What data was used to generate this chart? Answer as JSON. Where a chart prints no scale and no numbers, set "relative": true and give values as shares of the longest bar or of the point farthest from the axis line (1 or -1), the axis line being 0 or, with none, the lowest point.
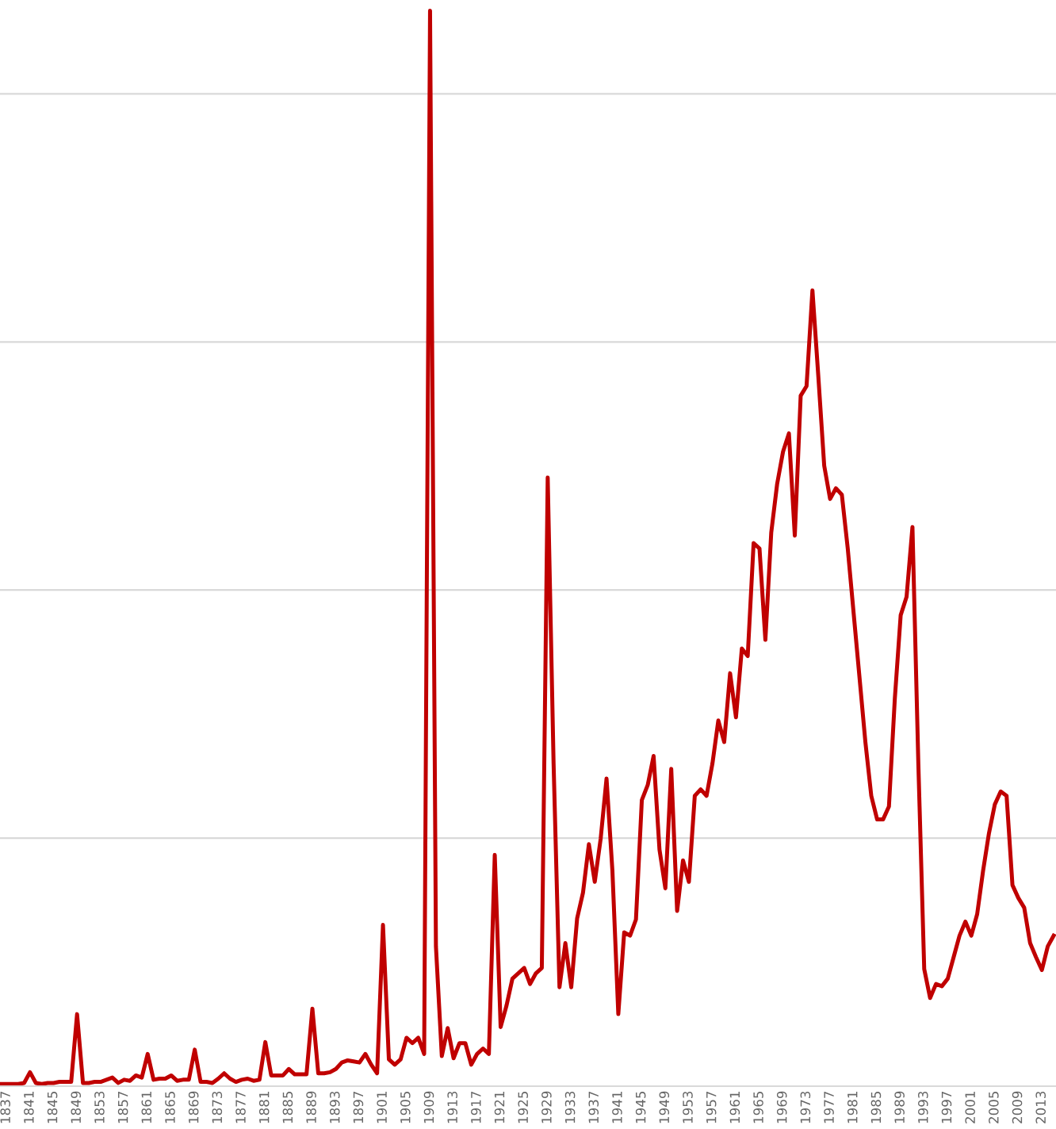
{
  "chart_data": {
    "type": "line",
    "relative": true,
    "grid": "y",
    "tick_labels": "x",
    "marker": "none",
    "line_style": "solid",
    "xlim": [
      1835.9,
      2015.4
    ],
    "xticks": [
      1837,
      1841,
      1845,
      1849,
      1853,
      1857,
      1861,
      1865,
      1869,
      1873,
      1877,
      1881,
      1885,
      1889,
      1893,
      1897,
      1901,
      1905,
      1909,
      1913,
      1917,
      1921,
      1925,
      1929,
      1933,
      1937,
      1941,
      1945,
      1949,
      1953,
      1957,
      1961,
      1965,
      1969,
      1973,
      1977,
      1981,
      1985,
      1989,
      1993,
      1997,
      2001,
      2005,
      2009,
      2013
    ],
    "x": [
      1836,
      1837,
      1838,
      1839,
      1840,
      1841,
      1842,
      1843,
      1844,
      1845,
      1846,
      1847,
      1848,
      1849,
      1850,
      1851,
      1852,
      1853,
      1854,
      1855,
      1856,
      1857,
      1858,
      1859,
      1860,
      1861,
      1862,
      1863,
      1864,
      1865,
      1866,
      1867,
      1868,
      1869,
      1870,
      1871,
      1872,
      1873,
      1874,
      1875,
      1876,
      1877,
      1878,
      1879,
      1880,
      1881,
      1882,
      1883,
      1884,
      1885,
      1886,
      1887,
      1888,
      1889,
      1890,
      1891,
      1892,
      1893,
      1894,
      1895,
      1896,
      1897,
      1898,
      1899,
      1900,
      1901,
      1902,
      1903,
      1904,
      1905,
      1906,
      1907,
      1908,
      1909,
      1910,
      1911,
      1912,
      1913,
      1914,
      1915,
      1916,
      1917,
      1918,
      1919,
      1920,
      1921,
      1922,
      1923,
      1924,
      1925,
      1926,
      1927,
      1928,
      1929,
      1930,
      1931,
      1932,
      1933,
      1934,
      1935,
      1936,
      1937,
      1938,
      1939,
      1940,
      1941,
      1942,
      1943,
      1944,
      1945,
      1946,
      1947,
      1948,
      1949,
      1950,
      1951,
      1952,
      1953,
      1954,
      1955,
      1956,
      1957,
      1958,
      1959,
      1960,
      1961,
      1962,
      1963,
      1964,
      1965,
      1966,
      1967,
      1968,
      1969,
      1970,
      1971,
      1972,
      1973,
      1974,
      1975,
      1976,
      1977,
      1978,
      1979,
      1980,
      1981,
      1982,
      1983,
      1984,
      1985,
      1986,
      1987,
      1988,
      1989,
      1990,
      1991,
      1992,
      1993,
      1994,
      1995,
      1996,
      1997,
      1998,
      1999,
      2000,
      2001,
      2002,
      2003,
      2004,
      2005,
      2006,
      2007,
      2008,
      2009,
      2010,
      2011,
      2012,
      2013,
      2014,
      2015
    ],
    "series": [
      {
        "color": "#c00000",
        "values": [
          0.002,
          0.002,
          0.002,
          0.002,
          0.003,
          0.013,
          0.003,
          0.002,
          0.003,
          0.003,
          0.004,
          0.004,
          0.004,
          0.067,
          0.003,
          0.003,
          0.004,
          0.004,
          0.006,
          0.008,
          0.003,
          0.006,
          0.005,
          0.01,
          0.008,
          0.03,
          0.006,
          0.007,
          0.007,
          0.01,
          0.005,
          0.006,
          0.006,
          0.034,
          0.004,
          0.004,
          0.003,
          0.007,
          0.012,
          0.007,
          0.004,
          0.006,
          0.007,
          0.005,
          0.006,
          0.041,
          0.01,
          0.01,
          0.01,
          0.016,
          0.011,
          0.011,
          0.011,
          0.072,
          0.012,
          0.012,
          0.013,
          0.016,
          0.022,
          0.024,
          0.023,
          0.022,
          0.03,
          0.02,
          0.012,
          0.15,
          0.025,
          0.02,
          0.025,
          0.045,
          0.04,
          0.045,
          0.03,
          1.0,
          0.13,
          0.028,
          0.054,
          0.026,
          0.04,
          0.04,
          0.02,
          0.03,
          0.035,
          0.03,
          0.215,
          0.055,
          0.075,
          0.1,
          0.105,
          0.11,
          0.095,
          0.105,
          0.11,
          0.566,
          0.3,
          0.092,
          0.133,
          0.092,
          0.156,
          0.18,
          0.225,
          0.19,
          0.23,
          0.286,
          0.2,
          0.067,
          0.143,
          0.14,
          0.155,
          0.266,
          0.28,
          0.307,
          0.22,
          0.184,
          0.295,
          0.163,
          0.21,
          0.19,
          0.27,
          0.276,
          0.27,
          0.3,
          0.34,
          0.32,
          0.384,
          0.343,
          0.407,
          0.4,
          0.505,
          0.5,
          0.415,
          0.515,
          0.56,
          0.59,
          0.607,
          0.512,
          0.642,
          0.651,
          0.74,
          0.66,
          0.577,
          0.546,
          0.556,
          0.55,
          0.5,
          0.44,
          0.38,
          0.32,
          0.27,
          0.248,
          0.248,
          0.26,
          0.36,
          0.438,
          0.455,
          0.52,
          0.3,
          0.109,
          0.082,
          0.095,
          0.093,
          0.1,
          0.12,
          0.14,
          0.153,
          0.14,
          0.16,
          0.2,
          0.235,
          0.262,
          0.274,
          0.27,
          0.187,
          0.175,
          0.166,
          0.133,
          0.12,
          0.108,
          0.13,
          0.14
        ]
      }
    ]
  }
}
